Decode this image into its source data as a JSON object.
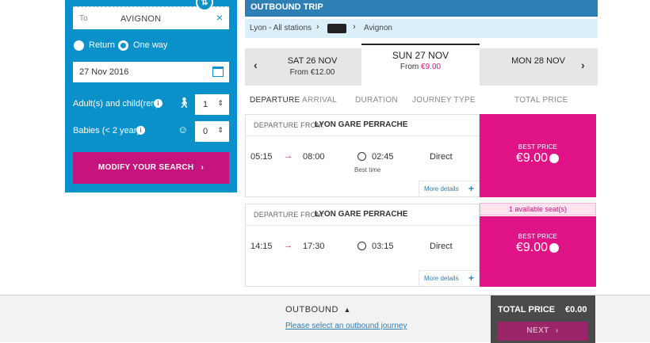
{
  "search": {
    "to_label": "To",
    "to_value": "AVIGNON",
    "return_label": "Return",
    "oneway_label": "One way",
    "date_value": "27 Nov 2016",
    "adults_label": "Adult(s) and child(ren)",
    "adults_value": "1",
    "babies_label": "Babies (< 2 year)",
    "babies_value": "0",
    "modify_label": "MODIFY YOUR SEARCH"
  },
  "trip": {
    "title": "OUTBOUND TRIP",
    "from": "Lyon - All stations",
    "to": "Avignon"
  },
  "dates": [
    {
      "day": "SAT 26 NOV",
      "from_label": "From",
      "price": "€12.00"
    },
    {
      "day": "SUN 27 NOV",
      "from_label": "From",
      "price": "€9.00"
    },
    {
      "day": "MON 28 NOV"
    }
  ],
  "columns": {
    "departure": "DEPARTURE",
    "arrival": "ARRIVAL",
    "duration": "DURATION",
    "journey_type": "JOURNEY TYPE",
    "total_price": "TOTAL PRICE"
  },
  "journeys": [
    {
      "dep_label": "DEPARTURE FROM:",
      "station": "LYON GARE PERRACHE",
      "depart": "05:15",
      "arrive": "08:00",
      "duration": "02:45",
      "tag": "Best time",
      "type": "Direct",
      "more": "More details",
      "best_label": "BEST PRICE",
      "price": "€9.00"
    },
    {
      "dep_label": "DEPARTURE FROM:",
      "station": "LYON GARE PERRACHE",
      "depart": "14:15",
      "arrive": "17:30",
      "duration": "03:15",
      "type": "Direct",
      "more": "More details",
      "seats": "1 available seat(s)",
      "best_label": "BEST PRICE",
      "price": "€9.00"
    }
  ],
  "footer": {
    "outbound": "OUTBOUND",
    "hint": "Please select an outbound journey",
    "total_label": "TOTAL PRICE",
    "total_value": "€0.00",
    "next_label": "NEXT"
  }
}
